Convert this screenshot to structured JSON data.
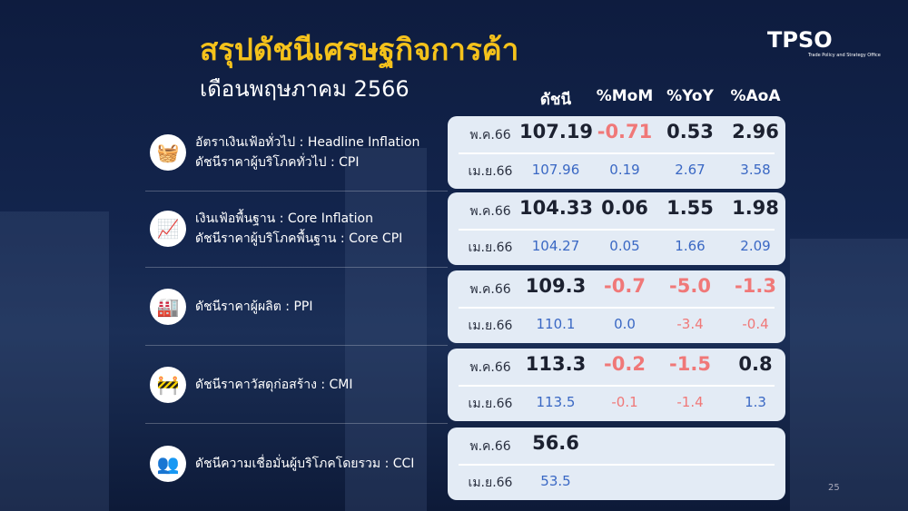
{
  "title": "สรุปดัชนีเศรษฐกิจการค้า",
  "subtitle": "เดือนพฤษภาคม 2566",
  "logo": {
    "text": "TPSO",
    "tagline": "Trade Policy and Strategy Office"
  },
  "headers": [
    "ดัชนี",
    "%MoM",
    "%YoY",
    "%AoA"
  ],
  "colors": {
    "title": "#f5c21b",
    "negative": "#f07878",
    "previous": "#3a68c4",
    "current": "#1c2130"
  },
  "indicators": [
    {
      "labels": [
        "อัตราเงินเฟ้อทั่วไป : Headline Inflation",
        "ดัชนีราคาผู้บริโภคทั่วไป : CPI"
      ],
      "icon": "shopping-basket-icon",
      "rows": [
        {
          "month": "พ.ค.66",
          "values": [
            "107.19",
            "-0.71",
            "0.53",
            "2.96"
          ]
        },
        {
          "month": "เม.ย.66",
          "values": [
            "107.96",
            "0.19",
            "2.67",
            "3.58"
          ]
        }
      ]
    },
    {
      "labels": [
        "เงินเฟ้อพื้นฐาน : Core Inflation",
        "ดัชนีราคาผู้บริโภคพื้นฐาน : Core CPI"
      ],
      "icon": "growth-chart-icon",
      "rows": [
        {
          "month": "พ.ค.66",
          "values": [
            "104.33",
            "0.06",
            "1.55",
            "1.98"
          ]
        },
        {
          "month": "เม.ย.66",
          "values": [
            "104.27",
            "0.05",
            "1.66",
            "2.09"
          ]
        }
      ]
    },
    {
      "labels": [
        "ดัชนีราคาผู้ผลิต : PPI"
      ],
      "icon": "factory-icon",
      "rows": [
        {
          "month": "พ.ค.66",
          "values": [
            "109.3",
            "-0.7",
            "-5.0",
            "-1.3"
          ]
        },
        {
          "month": "เม.ย.66",
          "values": [
            "110.1",
            "0.0",
            "-3.4",
            "-0.4"
          ]
        }
      ]
    },
    {
      "labels": [
        "ดัชนีราคาวัสดุก่อสร้าง : CMI"
      ],
      "icon": "construction-icon",
      "rows": [
        {
          "month": "พ.ค.66",
          "values": [
            "113.3",
            "-0.2",
            "-1.5",
            "0.8"
          ]
        },
        {
          "month": "เม.ย.66",
          "values": [
            "113.5",
            "-0.1",
            "-1.4",
            "1.3"
          ]
        }
      ]
    },
    {
      "labels": [
        "ดัชนีความเชื่อมั่นผู้บริโภคโดยรวม : CCI"
      ],
      "icon": "consumer-confidence-icon",
      "rows": [
        {
          "month": "พ.ค.66",
          "values": [
            "56.6"
          ]
        },
        {
          "month": "เม.ย.66",
          "values": [
            "53.5"
          ]
        }
      ]
    }
  ],
  "page_number": "25"
}
